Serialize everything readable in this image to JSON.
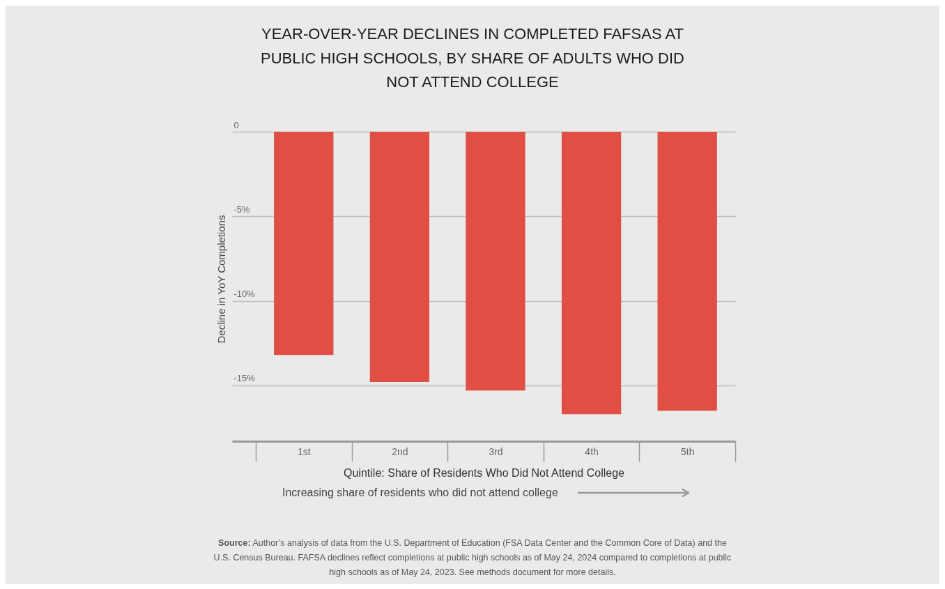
{
  "chart_data": {
    "type": "bar",
    "title": "YEAR-OVER-YEAR DECLINES IN COMPLETED FAFSAS AT PUBLIC HIGH SCHOOLS, BY SHARE OF ADULTS WHO DID NOT ATTEND COLLEGE",
    "xlabel": "Quintile: Share of Residents Who Did Not Attend College",
    "ylabel": "Decline in YoY Completions",
    "categories": [
      "1st",
      "2nd",
      "3rd",
      "4th",
      "5th"
    ],
    "values": [
      -13.2,
      -14.8,
      -15.3,
      -16.7,
      -16.5
    ],
    "color": "#e14e44",
    "ylim": [
      -18.3,
      0
    ],
    "yticks": [
      0,
      {
        "value": -5,
        "label": "-5%"
      },
      {
        "value": -10,
        "label": "-10%"
      },
      {
        "value": -15,
        "label": "-15%"
      }
    ],
    "grid": "y",
    "annotations": [
      "Increasing share of residents who did not attend college",
      "Source: Author’s analysis of data from the U.S. Department of Education (FSA Data Center and the Common Core of Data) and the U.S. Census Bureau. FAFSA declines reflect completions at public high schools as of May 24, 2024 compared to completions at public high schools as of May 24, 2023. See methods document for more details."
    ]
  }
}
